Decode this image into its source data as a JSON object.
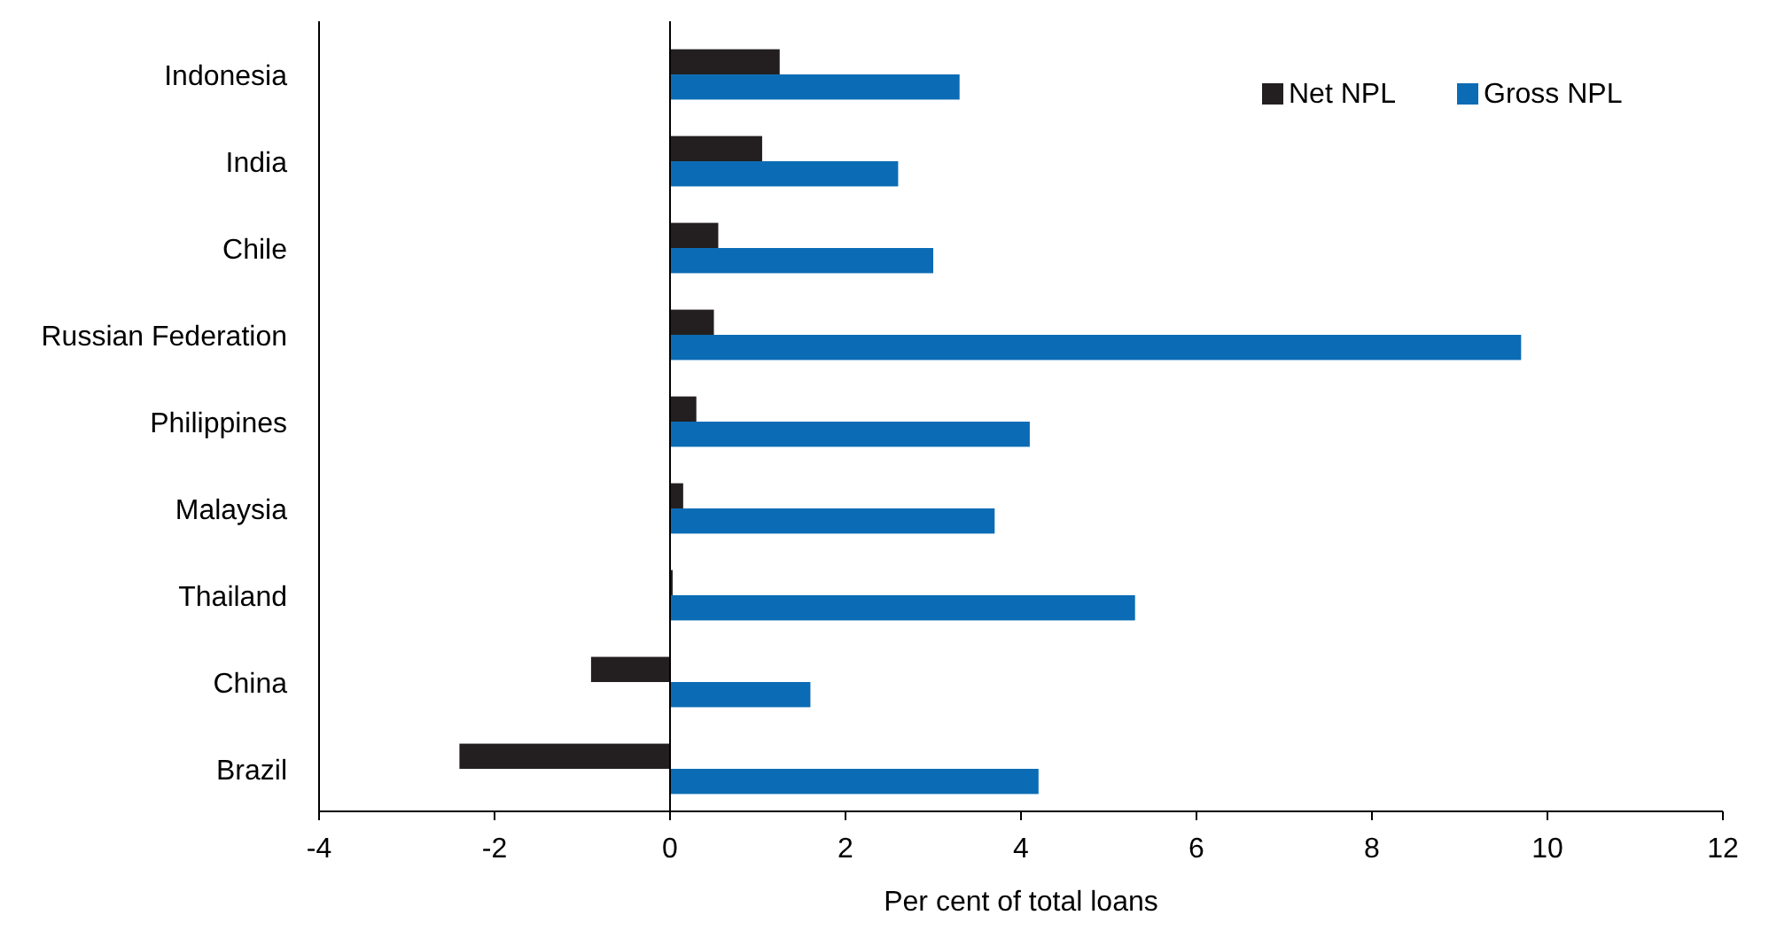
{
  "chart_data": {
    "type": "bar",
    "orientation": "horizontal",
    "xlabel": "Per cent of total loans",
    "categories": [
      "Indonesia",
      "India",
      "Chile",
      "Russian Federation",
      "Philippines",
      "Malaysia",
      "Thailand",
      "China",
      "Brazil"
    ],
    "series": [
      {
        "name": "Net NPL",
        "color": "#231f20",
        "values": [
          1.25,
          1.05,
          0.55,
          0.5,
          0.3,
          0.15,
          0.03,
          -0.9,
          -2.4
        ]
      },
      {
        "name": "Gross NPL",
        "color": "#0b6cb5",
        "values": [
          3.3,
          2.6,
          3.0,
          9.7,
          4.1,
          3.7,
          5.3,
          1.6,
          4.2
        ]
      }
    ],
    "xlim": [
      -4,
      12
    ],
    "xticks": [
      -4,
      -2,
      0,
      2,
      4,
      6,
      8,
      10,
      12
    ],
    "legend": "top right"
  }
}
